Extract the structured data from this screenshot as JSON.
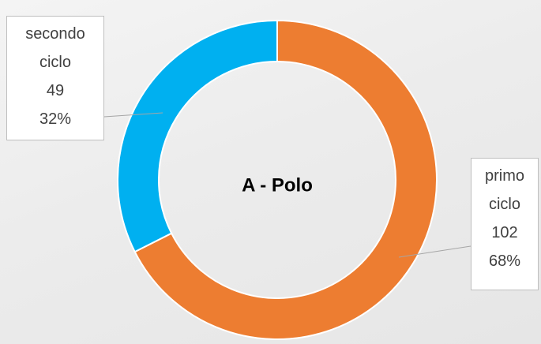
{
  "chart_data": {
    "type": "donut",
    "center_label": "A - Polo",
    "categories": [
      "primo ciclo",
      "secondo ciclo"
    ],
    "values": [
      102,
      49
    ],
    "percent_labels": [
      "68%",
      "32%"
    ],
    "colors": [
      "#ed7d31",
      "#00b0f0"
    ]
  }
}
